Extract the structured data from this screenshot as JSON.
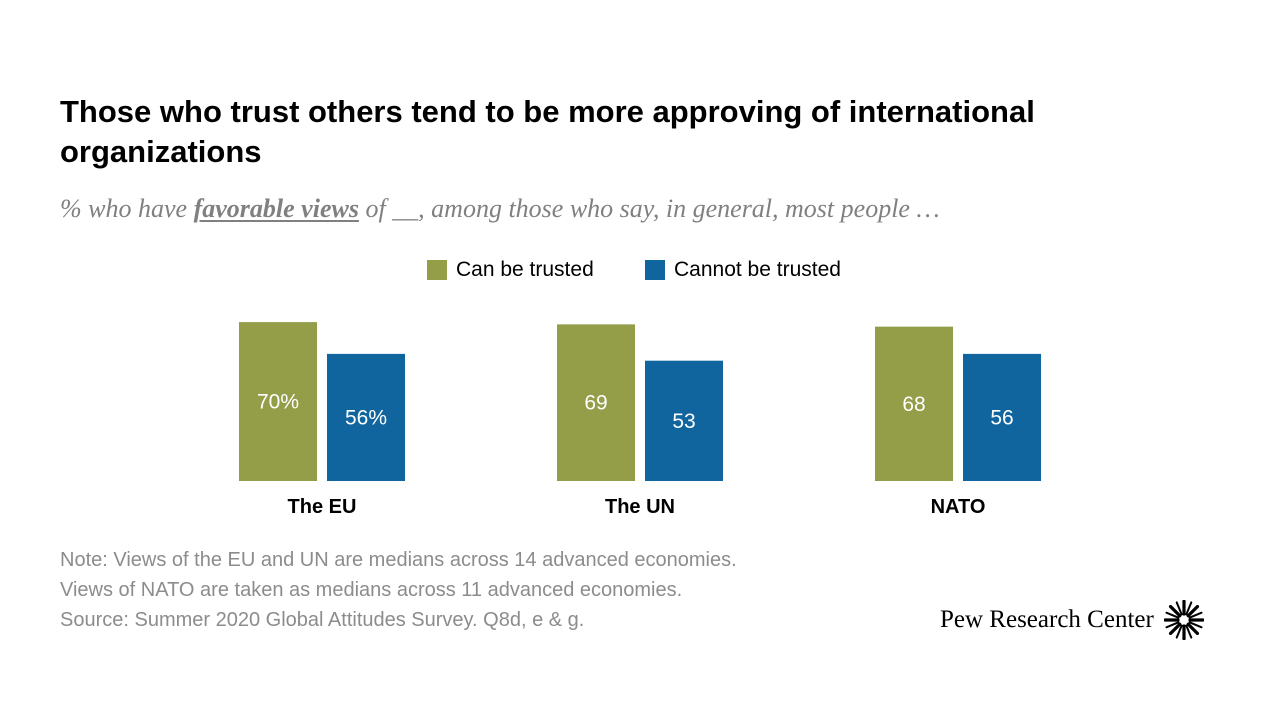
{
  "title": "Those who trust others tend to be more approving of international organizations",
  "subtitle": {
    "before": "% who have ",
    "emphasis": "favorable views",
    "after": " of __, among those who say, in general, most people …"
  },
  "legend": [
    {
      "label": "Can be trusted",
      "color": "#949d48"
    },
    {
      "label": "Cannot be trusted",
      "color": "#10659e"
    }
  ],
  "chart_data": {
    "type": "bar",
    "categories": [
      "The EU",
      "The UN",
      "NATO"
    ],
    "series": [
      {
        "name": "Can be trusted",
        "values": [
          70,
          69,
          68
        ],
        "labels": [
          "70%",
          "69",
          "68"
        ],
        "color": "#949d48"
      },
      {
        "name": "Cannot be trusted",
        "values": [
          56,
          53,
          56
        ],
        "labels": [
          "56%",
          "53",
          "56"
        ],
        "color": "#10659e"
      }
    ],
    "ylim": [
      0,
      100
    ],
    "xlabel": "",
    "ylabel": "",
    "grid": false,
    "legend_position": "top-center"
  },
  "note": {
    "lines": [
      "Note: Views of the EU and UN are medians across 14 advanced economies.",
      "Views of NATO are taken as medians across 11 advanced economies.",
      "Source: Summer 2020 Global Attitudes Survey. Q8d, e & g."
    ]
  },
  "branding": {
    "name": "Pew Research Center",
    "icon": "pew-starburst-icon"
  }
}
